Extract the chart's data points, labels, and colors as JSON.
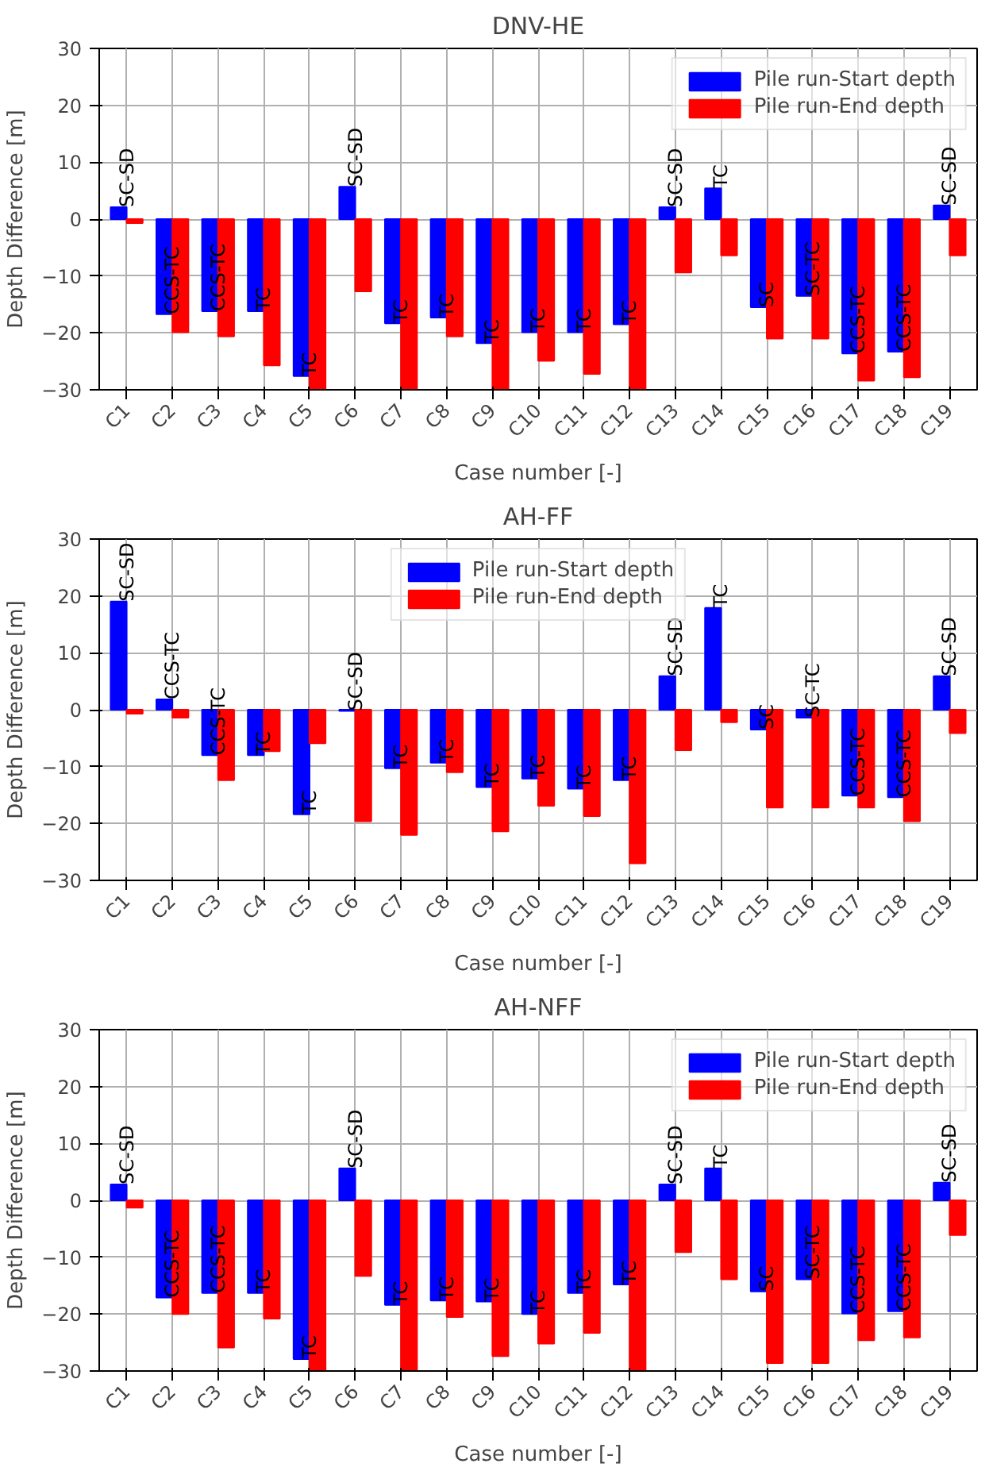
{
  "chart_data": [
    {
      "type": "bar",
      "title": "DNV-HE",
      "xlabel": "Case number [-]",
      "ylabel": "Depth Difference [m]",
      "categories": [
        "C1",
        "C2",
        "C3",
        "C4",
        "C5",
        "C6",
        "C7",
        "C8",
        "C9",
        "C10",
        "C11",
        "C12",
        "C13",
        "C14",
        "C15",
        "C16",
        "C17",
        "C18",
        "C19"
      ],
      "series": [
        {
          "name": "Pile run-Start depth",
          "color": "#0000ff",
          "values": [
            2.1,
            -16.7,
            -16.2,
            -16.2,
            -27.6,
            5.7,
            -18.3,
            -17.3,
            -21.8,
            -19.9,
            -19.9,
            -18.5,
            2.1,
            5.4,
            -15.5,
            -13.5,
            -23.6,
            -23.3,
            2.4
          ]
        },
        {
          "name": "Pile run-End depth",
          "color": "#ff0000",
          "values": [
            -0.7,
            -19.9,
            -20.6,
            -25.7,
            -30,
            -12.7,
            -30,
            -20.6,
            -30,
            -24.9,
            -27.2,
            -30,
            -9.4,
            -6.4,
            -21,
            -21,
            -28.4,
            -27.8,
            -6.4
          ]
        }
      ],
      "annotations": [
        {
          "text": "SC-SD",
          "x": "C1",
          "y": 2.1
        },
        {
          "text": "CCS-TC",
          "x": "C2",
          "y": -16.7
        },
        {
          "text": "CCS-TC",
          "x": "C3",
          "y": -16.2
        },
        {
          "text": "TC",
          "x": "C4",
          "y": -16.2
        },
        {
          "text": "TC",
          "x": "C5",
          "y": -27.6
        },
        {
          "text": "SC-SD",
          "x": "C6",
          "y": 5.7
        },
        {
          "text": "TC",
          "x": "C7",
          "y": -18.3
        },
        {
          "text": "TC",
          "x": "C8",
          "y": -17.3
        },
        {
          "text": "TC",
          "x": "C9",
          "y": -21.8
        },
        {
          "text": "TC",
          "x": "C10",
          "y": -19.9
        },
        {
          "text": "TC",
          "x": "C11",
          "y": -19.9
        },
        {
          "text": "TC",
          "x": "C12",
          "y": -18.5
        },
        {
          "text": "SC-SD",
          "x": "C13",
          "y": 2.1
        },
        {
          "text": "TC",
          "x": "C14",
          "y": 5.4
        },
        {
          "text": "SC",
          "x": "C15",
          "y": -15.5
        },
        {
          "text": "SC-TC",
          "x": "C16",
          "y": -13.5
        },
        {
          "text": "CCS-TC",
          "x": "C17",
          "y": -23.6
        },
        {
          "text": "CCS-TC",
          "x": "C18",
          "y": -23.3
        },
        {
          "text": "SC-SD",
          "x": "C19",
          "y": 2.4
        }
      ],
      "ylim": [
        -30,
        30
      ],
      "yticks": [
        -30,
        -20,
        -10,
        0,
        10,
        20,
        30
      ],
      "grid": true,
      "legend": "top right"
    },
    {
      "type": "bar",
      "title": "AH-FF",
      "xlabel": "Case number [-]",
      "ylabel": "Depth Difference [m]",
      "categories": [
        "C1",
        "C2",
        "C3",
        "C4",
        "C5",
        "C6",
        "C7",
        "C8",
        "C9",
        "C10",
        "C11",
        "C12",
        "C13",
        "C14",
        "C15",
        "C16",
        "C17",
        "C18",
        "C19"
      ],
      "series": [
        {
          "name": "Pile run-Start depth",
          "color": "#0000ff",
          "values": [
            19.0,
            1.8,
            -8.0,
            -8.0,
            -18.4,
            -0.2,
            -10.3,
            -9.3,
            -13.6,
            -12.1,
            -13.9,
            -12.4,
            5.9,
            17.9,
            -3.5,
            -1.4,
            -15.1,
            -15.4,
            5.9
          ]
        },
        {
          "name": "Pile run-End depth",
          "color": "#ff0000",
          "values": [
            -0.7,
            -1.4,
            -12.4,
            -7.3,
            -5.9,
            -19.6,
            -22.0,
            -11.0,
            -21.4,
            -16.9,
            -18.7,
            -27.0,
            -7.1,
            -2.2,
            -17.2,
            -17.2,
            -17.2,
            -19.6,
            -4.1
          ]
        }
      ],
      "annotations": [
        {
          "text": "SC-SD",
          "x": "C1",
          "y": 19.0
        },
        {
          "text": "CCS-TC",
          "x": "C2",
          "y": 1.8
        },
        {
          "text": "CCS-TC",
          "x": "C3",
          "y": -8.0
        },
        {
          "text": "TC",
          "x": "C4",
          "y": -8.0
        },
        {
          "text": "TC",
          "x": "C5",
          "y": -18.4
        },
        {
          "text": "SC-SD",
          "x": "C6",
          "y": -0.2
        },
        {
          "text": "TC",
          "x": "C7",
          "y": -10.3
        },
        {
          "text": "TC",
          "x": "C8",
          "y": -9.3
        },
        {
          "text": "TC",
          "x": "C9",
          "y": -13.6
        },
        {
          "text": "TC",
          "x": "C10",
          "y": -12.1
        },
        {
          "text": "TC",
          "x": "C11",
          "y": -13.9
        },
        {
          "text": "TC",
          "x": "C12",
          "y": -12.4
        },
        {
          "text": "SC-SD",
          "x": "C13",
          "y": 5.9
        },
        {
          "text": "TC",
          "x": "C14",
          "y": 17.9
        },
        {
          "text": "SC",
          "x": "C15",
          "y": -3.5
        },
        {
          "text": "SC-TC",
          "x": "C16",
          "y": -1.4
        },
        {
          "text": "CCS-TC",
          "x": "C17",
          "y": -15.1
        },
        {
          "text": "CCS-TC",
          "x": "C18",
          "y": -15.4
        },
        {
          "text": "SC-SD",
          "x": "C19",
          "y": 5.9
        }
      ],
      "ylim": [
        -30,
        30
      ],
      "yticks": [
        -30,
        -20,
        -10,
        0,
        10,
        20,
        30
      ],
      "grid": true,
      "legend": "top"
    },
    {
      "type": "bar",
      "title": "AH-NFF",
      "xlabel": "Case number [-]",
      "ylabel": "Depth Difference [m]",
      "categories": [
        "C1",
        "C2",
        "C3",
        "C4",
        "C5",
        "C6",
        "C7",
        "C8",
        "C9",
        "C10",
        "C11",
        "C12",
        "C13",
        "C14",
        "C15",
        "C16",
        "C17",
        "C18",
        "C19"
      ],
      "series": [
        {
          "name": "Pile run-Start depth",
          "color": "#0000ff",
          "values": [
            2.8,
            -17.1,
            -16.3,
            -16.3,
            -27.9,
            5.6,
            -18.4,
            -17.6,
            -17.8,
            -20.0,
            -16.3,
            -14.8,
            2.8,
            5.6,
            -16.0,
            -13.9,
            -19.9,
            -19.5,
            3.1
          ]
        },
        {
          "name": "Pile run-End depth",
          "color": "#ff0000",
          "values": [
            -1.3,
            -20.0,
            -25.9,
            -20.8,
            -30,
            -13.3,
            -30,
            -20.5,
            -27.4,
            -25.2,
            -23.3,
            -30,
            -9.1,
            -13.9,
            -28.6,
            -28.6,
            -24.6,
            -24.1,
            -6.1
          ]
        }
      ],
      "annotations": [
        {
          "text": "SC-SD",
          "x": "C1",
          "y": 2.8
        },
        {
          "text": "CCS-TC",
          "x": "C2",
          "y": -17.1
        },
        {
          "text": "CCS-TC",
          "x": "C3",
          "y": -16.3
        },
        {
          "text": "TC",
          "x": "C4",
          "y": -16.3
        },
        {
          "text": "TC",
          "x": "C5",
          "y": -27.9
        },
        {
          "text": "SC-SD",
          "x": "C6",
          "y": 5.6
        },
        {
          "text": "TC",
          "x": "C7",
          "y": -18.4
        },
        {
          "text": "TC",
          "x": "C8",
          "y": -17.6
        },
        {
          "text": "TC",
          "x": "C9",
          "y": -17.8
        },
        {
          "text": "TC",
          "x": "C10",
          "y": -20.0
        },
        {
          "text": "TC",
          "x": "C11",
          "y": -16.3
        },
        {
          "text": "TC",
          "x": "C12",
          "y": -14.8
        },
        {
          "text": "SC-SD",
          "x": "C13",
          "y": 2.8
        },
        {
          "text": "TC",
          "x": "C14",
          "y": 5.6
        },
        {
          "text": "SC",
          "x": "C15",
          "y": -16.0
        },
        {
          "text": "SC-TC",
          "x": "C16",
          "y": -13.9
        },
        {
          "text": "CCS-TC",
          "x": "C17",
          "y": -19.9
        },
        {
          "text": "CCS-TC",
          "x": "C18",
          "y": -19.5
        },
        {
          "text": "SC-SD",
          "x": "C19",
          "y": 3.1
        }
      ],
      "ylim": [
        -30,
        30
      ],
      "yticks": [
        -30,
        -20,
        -10,
        0,
        10,
        20,
        30
      ],
      "grid": true,
      "legend": "top right"
    }
  ]
}
